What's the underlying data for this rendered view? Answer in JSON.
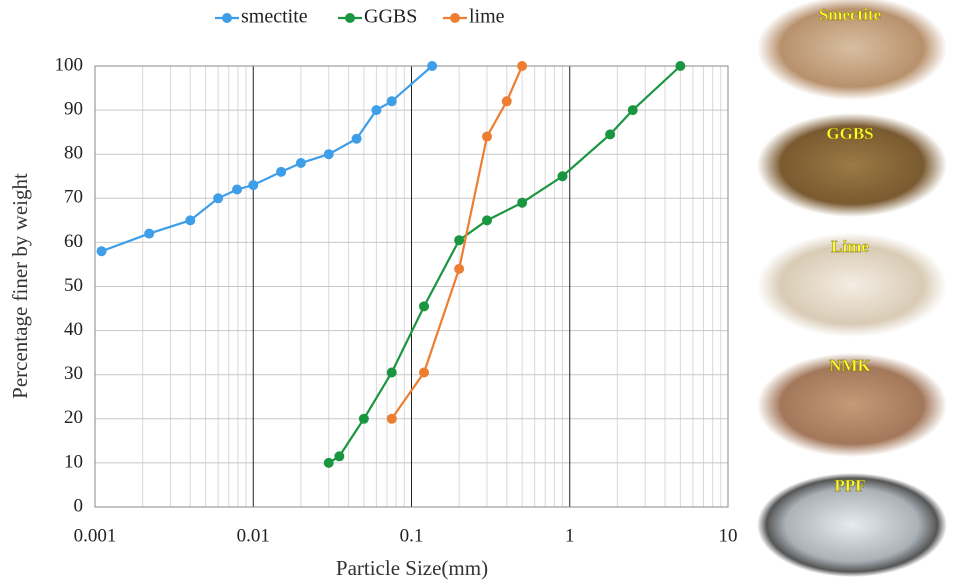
{
  "chart_data": {
    "type": "line",
    "xlabel": "Particle Size(mm)",
    "ylabel": "Percentage finer by weight",
    "xscale": "log",
    "xlim": [
      0.001,
      10
    ],
    "xticks": [
      0.001,
      0.01,
      0.1,
      1,
      10
    ],
    "ylim": [
      0,
      100
    ],
    "yticks": [
      0,
      10,
      20,
      30,
      40,
      50,
      60,
      70,
      80,
      90,
      100
    ],
    "grid": true,
    "minor_grid": true,
    "legend": "top",
    "series": [
      {
        "name": "smectite",
        "color": "#3e9ee8",
        "x": [
          0.0011,
          0.0022,
          0.004,
          0.006,
          0.0079,
          0.01,
          0.015,
          0.02,
          0.03,
          0.045,
          0.06,
          0.075,
          0.135
        ],
        "values": [
          58,
          62,
          65,
          70,
          72,
          73,
          76,
          78,
          80,
          83.5,
          90,
          92,
          100
        ]
      },
      {
        "name": "GGBS",
        "color": "#1a9641",
        "x": [
          0.03,
          0.035,
          0.05,
          0.075,
          0.12,
          0.2,
          0.3,
          0.5,
          0.9,
          1.8,
          2.5,
          5
        ],
        "values": [
          10,
          11.5,
          20,
          30.5,
          45.5,
          60.5,
          65,
          69,
          75,
          84.5,
          90,
          100
        ]
      },
      {
        "name": "lime",
        "color": "#ed7d31",
        "x": [
          0.075,
          0.12,
          0.2,
          0.3,
          0.4,
          0.5
        ],
        "values": [
          20,
          30.5,
          54,
          84,
          92,
          100
        ]
      }
    ]
  },
  "panels": [
    "Smectite",
    "GGBS",
    "Lime",
    "NMK",
    "PPF"
  ]
}
